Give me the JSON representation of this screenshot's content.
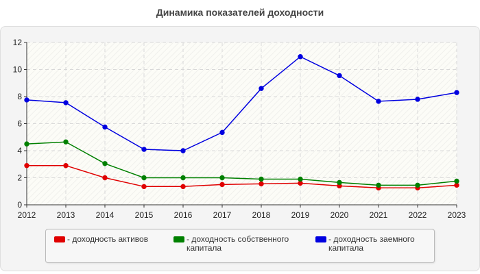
{
  "chart_data": {
    "type": "line",
    "title": "Динамика показателей доходности",
    "xlabel": "",
    "ylabel": "",
    "x": [
      "2012",
      "2013",
      "2014",
      "2015",
      "2016",
      "2017",
      "2018",
      "2019",
      "2020",
      "2021",
      "2022",
      "2023"
    ],
    "ylim": [
      0,
      12
    ],
    "yticks": [
      0,
      2,
      4,
      6,
      8,
      10,
      12
    ],
    "grid": true,
    "legend_position": "bottom",
    "series": [
      {
        "name": "- доходность активов",
        "color": "#e00000",
        "values": [
          2.9,
          2.9,
          2.0,
          1.35,
          1.35,
          1.5,
          1.55,
          1.6,
          1.4,
          1.25,
          1.25,
          1.45
        ]
      },
      {
        "name": "- доходность собственного капитала",
        "color": "#008000",
        "values": [
          4.5,
          4.65,
          3.05,
          2.0,
          2.0,
          2.0,
          1.9,
          1.9,
          1.65,
          1.45,
          1.45,
          1.75
        ]
      },
      {
        "name": "- доходность заемного капитала",
        "color": "#0000e0",
        "values": [
          7.75,
          7.55,
          5.75,
          4.1,
          4.0,
          5.35,
          8.6,
          10.95,
          9.55,
          7.65,
          7.8,
          8.3
        ]
      }
    ]
  }
}
